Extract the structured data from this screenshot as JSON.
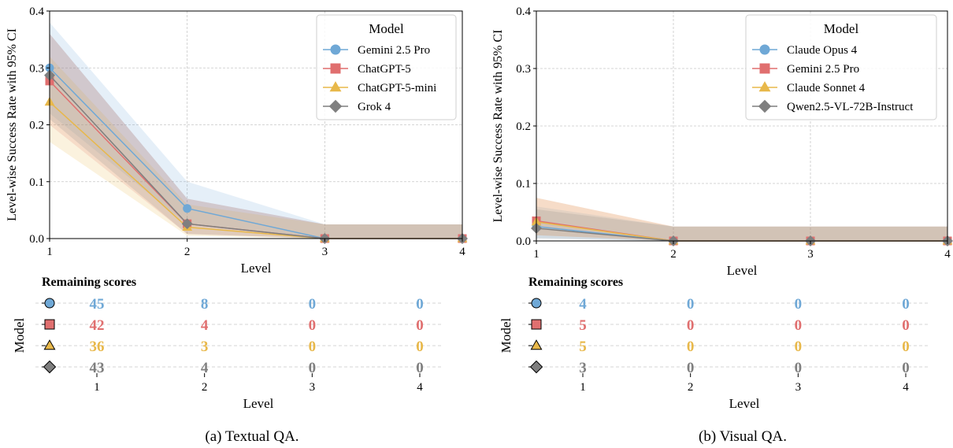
{
  "colors": {
    "blue": "#6fa8d6",
    "red": "#e06f6f",
    "yellow": "#e8b84a",
    "gray": "#7f7f7f"
  },
  "panels": [
    {
      "caption": "(a) Textual QA.",
      "table_title": "Remaining scores",
      "table_ylabel": "Model",
      "chart_data": {
        "type": "line",
        "xlabel": "Level",
        "ylabel": "Level-wise Success Rate with 95% CI",
        "x": [
          1,
          2,
          3,
          4
        ],
        "xlim": [
          1,
          4
        ],
        "ylim": [
          0,
          0.4
        ],
        "yticks": [
          "0.0",
          "0.1",
          "0.2",
          "0.3",
          "0.4"
        ],
        "grid": true,
        "legend_title": "Model",
        "legend_position": "top-right",
        "series": [
          {
            "name": "Gemini 2.5 Pro",
            "color": "#6fa8d6",
            "marker": "circle",
            "values": [
              0.3,
              0.053,
              0.0,
              0.0
            ],
            "ci_low": [
              0.22,
              0.025,
              0.0,
              0.0
            ],
            "ci_high": [
              0.38,
              0.1,
              0.025,
              0.025
            ]
          },
          {
            "name": "ChatGPT-5",
            "color": "#e06f6f",
            "marker": "square",
            "values": [
              0.277,
              0.026,
              0.0,
              0.0
            ],
            "ci_low": [
              0.2,
              0.008,
              0.0,
              0.0
            ],
            "ci_high": [
              0.36,
              0.07,
              0.025,
              0.025
            ]
          },
          {
            "name": "ChatGPT-5-mini",
            "color": "#e8b84a",
            "marker": "triangle",
            "values": [
              0.24,
              0.02,
              0.0,
              0.0
            ],
            "ci_low": [
              0.17,
              0.005,
              0.0,
              0.0
            ],
            "ci_high": [
              0.32,
              0.06,
              0.025,
              0.025
            ]
          },
          {
            "name": "Grok 4",
            "color": "#7f7f7f",
            "marker": "diamond",
            "values": [
              0.287,
              0.026,
              0.0,
              0.0
            ],
            "ci_low": [
              0.21,
              0.008,
              0.0,
              0.0
            ],
            "ci_high": [
              0.36,
              0.07,
              0.025,
              0.025
            ]
          }
        ]
      },
      "remaining": [
        [
          45,
          8,
          0,
          0
        ],
        [
          42,
          4,
          0,
          0
        ],
        [
          36,
          3,
          0,
          0
        ],
        [
          43,
          4,
          0,
          0
        ]
      ]
    },
    {
      "caption": "(b) Visual QA.",
      "table_title": "Remaining scores",
      "table_ylabel": "Model",
      "chart_data": {
        "type": "line",
        "xlabel": "Level",
        "ylabel": "Level-wise Success Rate with 95% CI",
        "x": [
          1,
          2,
          3,
          4
        ],
        "xlim": [
          1,
          4
        ],
        "ylim": [
          0,
          0.4
        ],
        "yticks": [
          "0.0",
          "0.1",
          "0.2",
          "0.3",
          "0.4"
        ],
        "grid": true,
        "legend_title": "Model",
        "legend_position": "top-right",
        "series": [
          {
            "name": "Claude Opus 4",
            "color": "#6fa8d6",
            "marker": "circle",
            "values": [
              0.025,
              0.0,
              0.0,
              0.0
            ],
            "ci_low": [
              0.005,
              0.0,
              0.0,
              0.0
            ],
            "ci_high": [
              0.06,
              0.025,
              0.025,
              0.025
            ]
          },
          {
            "name": "Gemini 2.5 Pro",
            "color": "#e06f6f",
            "marker": "square",
            "values": [
              0.035,
              0.0,
              0.0,
              0.0
            ],
            "ci_low": [
              0.01,
              0.0,
              0.0,
              0.0
            ],
            "ci_high": [
              0.075,
              0.025,
              0.025,
              0.025
            ]
          },
          {
            "name": "Claude Sonnet 4",
            "color": "#e8b84a",
            "marker": "triangle",
            "values": [
              0.033,
              0.0,
              0.0,
              0.0
            ],
            "ci_low": [
              0.01,
              0.0,
              0.0,
              0.0
            ],
            "ci_high": [
              0.075,
              0.025,
              0.025,
              0.025
            ]
          },
          {
            "name": "Qwen2.5-VL-72B-Instruct",
            "color": "#7f7f7f",
            "marker": "diamond",
            "values": [
              0.022,
              0.0,
              0.0,
              0.0
            ],
            "ci_low": [
              0.004,
              0.0,
              0.0,
              0.0
            ],
            "ci_high": [
              0.055,
              0.025,
              0.025,
              0.025
            ]
          }
        ]
      },
      "remaining": [
        [
          4,
          0,
          0,
          0
        ],
        [
          5,
          0,
          0,
          0
        ],
        [
          5,
          0,
          0,
          0
        ],
        [
          3,
          0,
          0,
          0
        ]
      ]
    }
  ]
}
